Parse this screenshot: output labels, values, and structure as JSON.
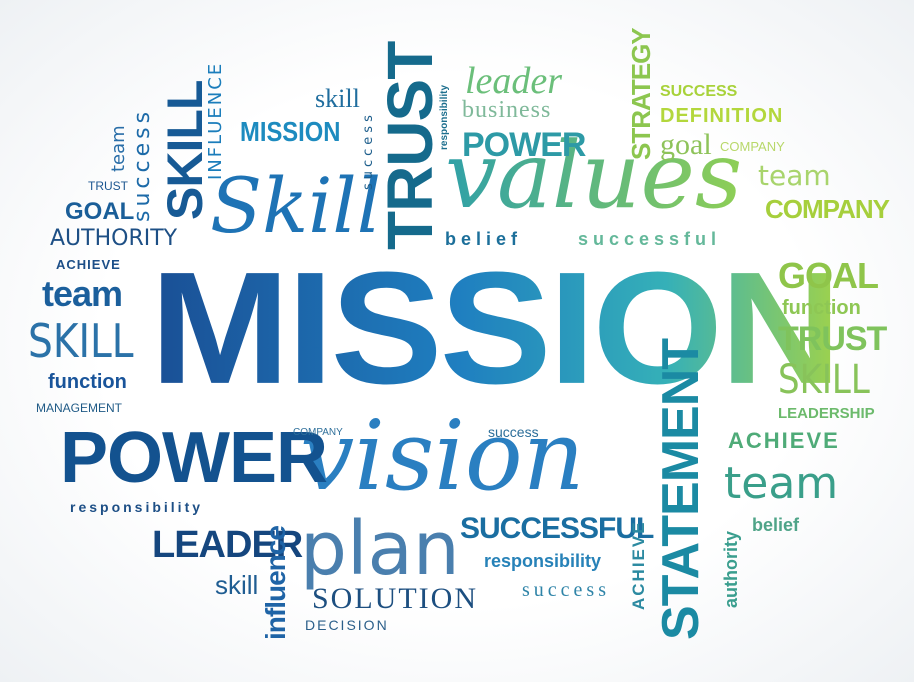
{
  "words": [
    {
      "text": "MISSION",
      "color": "#1b6fb2"
    },
    {
      "text": "values",
      "color": "#52b69a"
    },
    {
      "text": "vision",
      "color": "#2a7fc1"
    },
    {
      "text": "POWER",
      "color": "#13528f"
    },
    {
      "text": "Skill",
      "color": "#1e73b5"
    },
    {
      "text": "TRUST",
      "color": "#156a8c"
    },
    {
      "text": "STATEMENT",
      "color": "#1b8aa3"
    },
    {
      "text": "MISSION",
      "color": "#1d8bbf"
    },
    {
      "text": "SKILL",
      "color": "#175a95"
    },
    {
      "text": "success",
      "color": "#1c6aa8"
    },
    {
      "text": "team",
      "color": "#2a6ea8"
    },
    {
      "text": "TRUST",
      "color": "#1c5690"
    },
    {
      "text": "GOAL",
      "color": "#1a5e98"
    },
    {
      "text": "AUTHORITY",
      "color": "#1d4f85"
    },
    {
      "text": "INFLUENCE",
      "color": "#1b7dbb"
    },
    {
      "text": "skill",
      "color": "#1f6d9e"
    },
    {
      "text": "success",
      "color": "#1d5e8c"
    },
    {
      "text": "responsibility",
      "color": "#1d6f8e"
    },
    {
      "text": "leader",
      "color": "#6bbf7a"
    },
    {
      "text": "business",
      "color": "#7fb99a"
    },
    {
      "text": "POWER",
      "color": "#2d9aa6"
    },
    {
      "text": "STRATEGY",
      "color": "#8cc64f"
    },
    {
      "text": "SUCCESS",
      "color": "#a8d23a"
    },
    {
      "text": "DEFINITION",
      "color": "#b3d73c"
    },
    {
      "text": "goal",
      "color": "#8ec35a"
    },
    {
      "text": "COMPANY",
      "color": "#b8d86a"
    },
    {
      "text": "team",
      "color": "#a8d46c"
    },
    {
      "text": "COMPANY",
      "color": "#a6cf3c"
    },
    {
      "text": "belief",
      "color": "#1c6f9a"
    },
    {
      "text": "successful",
      "color": "#64b89a"
    },
    {
      "text": "ACHIEVE",
      "color": "#1d4f88"
    },
    {
      "text": "team",
      "color": "#1b5f9c"
    },
    {
      "text": "SKILL",
      "color": "#2b72a8"
    },
    {
      "text": "function",
      "color": "#19549a"
    },
    {
      "text": "MANAGEMENT",
      "color": "#1f5a86"
    },
    {
      "text": "GOAL",
      "color": "#8fc54a"
    },
    {
      "text": "function",
      "color": "#8ec754"
    },
    {
      "text": "TRUST",
      "color": "#7fc35c"
    },
    {
      "text": "SKILL",
      "color": "#88c35a"
    },
    {
      "text": "LEADERSHIP",
      "color": "#6cba6c"
    },
    {
      "text": "ACHIEVE",
      "color": "#4fab78"
    },
    {
      "text": "team",
      "color": "#3a9f8a"
    },
    {
      "text": "belief",
      "color": "#4fa488"
    },
    {
      "text": "COMPANY",
      "color": "#2e6f9a"
    },
    {
      "text": "success",
      "color": "#2c6e99"
    },
    {
      "text": "responsibility",
      "color": "#1d4f86"
    },
    {
      "text": "LEADER",
      "color": "#15467e"
    },
    {
      "text": "influence",
      "color": "#1f64a6"
    },
    {
      "text": "plan",
      "color": "#4a7fae"
    },
    {
      "text": "skill",
      "color": "#1f5d92"
    },
    {
      "text": "SOLUTION",
      "color": "#1d4f80"
    },
    {
      "text": "DECISION",
      "color": "#2b5f8a"
    },
    {
      "text": "SUCCESSFUL",
      "color": "#1a6ea1"
    },
    {
      "text": "responsibility",
      "color": "#2782b8"
    },
    {
      "text": "success",
      "color": "#2f84a8"
    },
    {
      "text": "ACHIEVE",
      "color": "#2c8aa1"
    },
    {
      "text": "authority",
      "color": "#3a9e8e"
    }
  ]
}
